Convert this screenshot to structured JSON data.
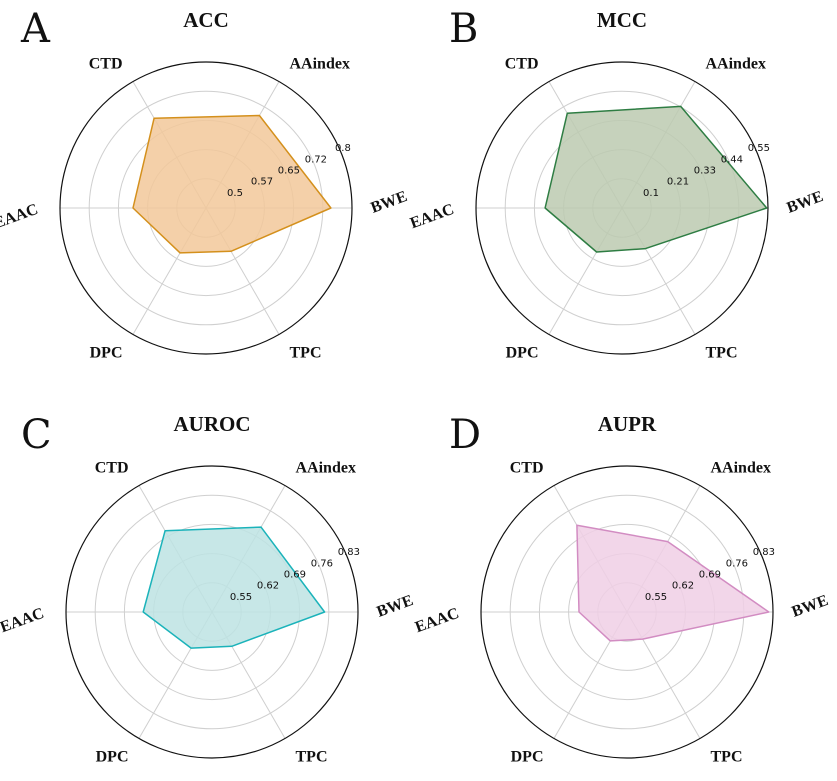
{
  "chart_data": [
    {
      "type": "radar",
      "panel": "A",
      "title": "ACC",
      "categories": [
        "BWE",
        "AAindex",
        "CTD",
        "EAAC",
        "DPC",
        "TPC"
      ],
      "ticks": [
        "0.5",
        "0.57",
        "0.65",
        "0.72",
        "0.8"
      ],
      "rlim": [
        0.42,
        0.8
      ],
      "values": [
        0.745,
        0.698,
        0.69,
        0.61,
        0.555,
        0.55
      ],
      "fill": "#f2c89a",
      "stroke": "#d4901c"
    },
    {
      "type": "radar",
      "panel": "B",
      "title": "MCC",
      "categories": [
        "BWE",
        "AAindex",
        "CTD",
        "EAAC",
        "DPC",
        "TPC"
      ],
      "ticks": [
        "0.1",
        "0.21",
        "0.33",
        "0.44",
        "0.55"
      ],
      "rlim": [
        -0.01,
        0.55
      ],
      "values": [
        0.545,
        0.44,
        0.41,
        0.285,
        0.185,
        0.17
      ],
      "fill": "#bccab0",
      "stroke": "#2e7d43"
    },
    {
      "type": "radar",
      "panel": "C",
      "title": "AUROC",
      "categories": [
        "BWE",
        "AAindex",
        "CTD",
        "EAAC",
        "DPC",
        "TPC"
      ],
      "ticks": [
        "0.55",
        "0.62",
        "0.69",
        "0.76",
        "0.83"
      ],
      "rlim": [
        0.48,
        0.83
      ],
      "values": [
        0.75,
        0.715,
        0.705,
        0.645,
        0.58,
        0.575
      ],
      "fill": "#bde3e3",
      "stroke": "#1bb3ba"
    },
    {
      "type": "radar",
      "panel": "D",
      "title": "AUPR",
      "categories": [
        "BWE",
        "AAindex",
        "CTD",
        "EAAC",
        "DPC",
        "TPC"
      ],
      "ticks": [
        "0.55",
        "0.62",
        "0.69",
        "0.76",
        "0.83"
      ],
      "rlim": [
        0.48,
        0.83
      ],
      "values": [
        0.82,
        0.675,
        0.72,
        0.595,
        0.56,
        0.555
      ],
      "fill": "#f0cfe5",
      "stroke": "#d28cc2"
    }
  ]
}
